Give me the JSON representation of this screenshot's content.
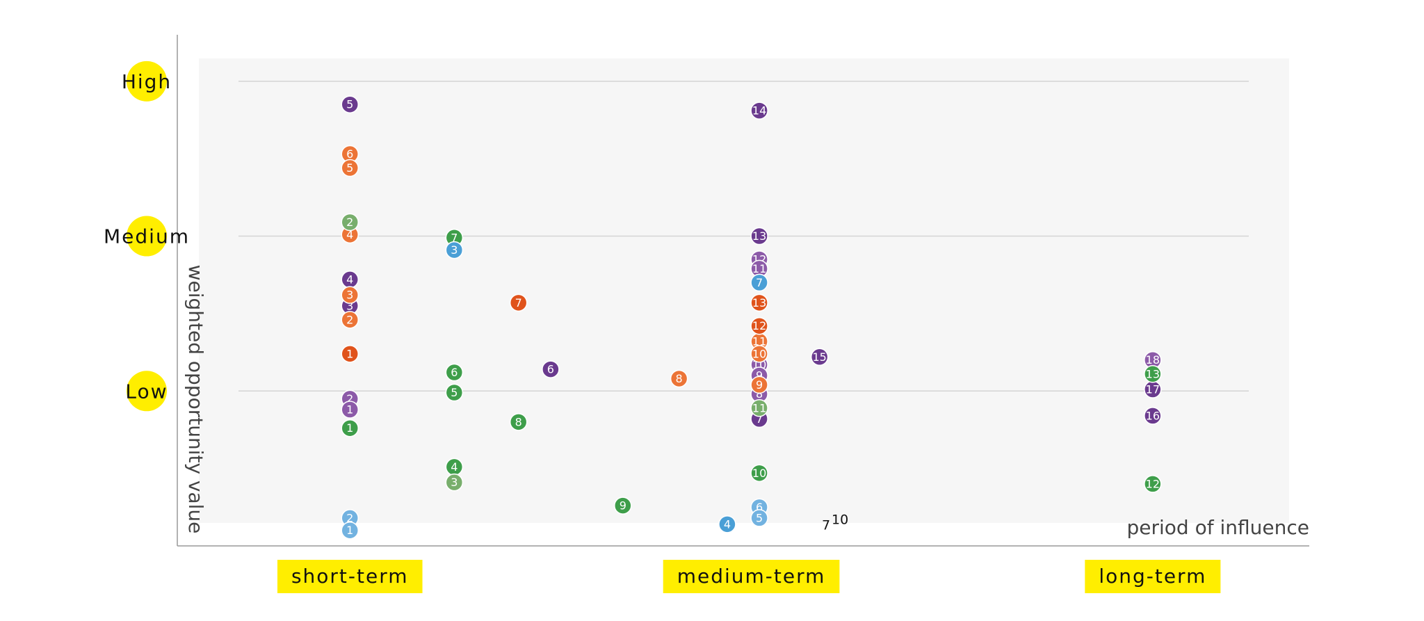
{
  "chart_data": {
    "type": "scatter",
    "x_label": "period of influence",
    "y_label": "weighted opportunity value",
    "xlim": [
      0.57,
      3.39
    ],
    "ylim": [
      0,
      3.3
    ],
    "xticks": [
      {
        "value": 1,
        "label": "short-term"
      },
      {
        "value": 2,
        "label": "medium-term"
      },
      {
        "value": 3,
        "label": "long-term"
      }
    ],
    "yticks": [
      {
        "value": 1,
        "label": "Low"
      },
      {
        "value": 2,
        "label": "Medium"
      },
      {
        "value": 3,
        "label": "High"
      }
    ],
    "grid": true,
    "annotations": [
      "7",
      "10"
    ],
    "series": [
      {
        "color": "#6a3a8e",
        "x": [
          1,
          1,
          1,
          1.5,
          2.02,
          2.02,
          2.02,
          2.17,
          3,
          3
        ],
        "values": [
          2.85,
          1.72,
          1.55,
          1.14,
          2.81,
          2.0,
          0.82,
          1.22,
          1.01,
          0.84
        ],
        "labels": [
          "5",
          "4",
          "3",
          "6",
          "14",
          "13",
          "7",
          "15",
          "17",
          "16"
        ]
      },
      {
        "color": "#8c5aa8",
        "x": [
          1,
          1,
          2.02,
          2.02,
          2.02,
          2.02,
          2.02,
          3
        ],
        "values": [
          0.95,
          0.88,
          1.85,
          1.79,
          1.17,
          1.1,
          0.98,
          1.2
        ],
        "labels": [
          "2",
          "1",
          "12",
          "11",
          "10",
          "9",
          "8",
          "18"
        ]
      },
      {
        "color": "#ec7436",
        "x": [
          1,
          1,
          1,
          1,
          1,
          1.82,
          2.02,
          2.02,
          2.02
        ],
        "values": [
          2.53,
          2.44,
          2.01,
          1.62,
          1.46,
          1.08,
          1.32,
          1.24,
          1.04
        ],
        "labels": [
          "6",
          "5",
          "4",
          "3",
          "2",
          "8",
          "11",
          "10",
          "9"
        ]
      },
      {
        "color": "#e0531b",
        "x": [
          1,
          1.42,
          2.02,
          2.02
        ],
        "values": [
          1.24,
          1.57,
          1.57,
          1.42
        ],
        "labels": [
          "1",
          "7",
          "13",
          "12"
        ]
      },
      {
        "color": "#3e9e4a",
        "x": [
          1,
          1.26,
          1.26,
          1.26,
          1.26,
          1.42,
          1.68,
          2.02,
          3,
          3
        ],
        "values": [
          0.76,
          1.99,
          1.12,
          0.99,
          0.51,
          0.8,
          0.26,
          0.47,
          1.11,
          0.4
        ],
        "labels": [
          "1",
          "7",
          "6",
          "5",
          "4",
          "8",
          "9",
          "10",
          "13",
          "12"
        ]
      },
      {
        "color": "#78ae6c",
        "x": [
          1,
          1.26,
          2.02
        ],
        "values": [
          2.09,
          0.41,
          0.89
        ],
        "labels": [
          "2",
          "3",
          "11"
        ]
      },
      {
        "color": "#4a9fd6",
        "x": [
          1.26,
          1.94,
          2.02
        ],
        "values": [
          1.91,
          0.14,
          1.7
        ],
        "labels": [
          "3",
          "4",
          "7"
        ]
      },
      {
        "color": "#72b2e0",
        "x": [
          1,
          1,
          2.02,
          2.02
        ],
        "values": [
          0.18,
          0.1,
          0.25,
          0.18
        ],
        "labels": [
          "2",
          "1",
          "6",
          "5"
        ]
      }
    ]
  }
}
